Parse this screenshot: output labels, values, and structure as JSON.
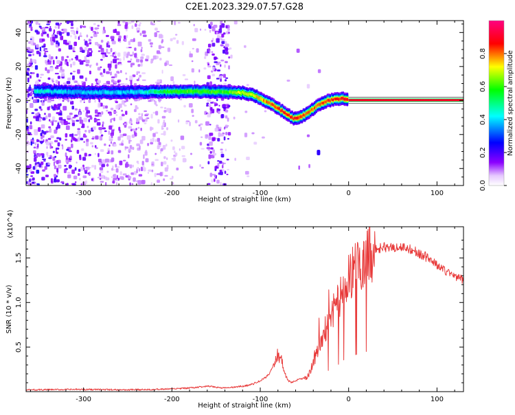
{
  "title": "C2E1.2023.329.07.57.G28",
  "chart_data": [
    {
      "type": "heatmap",
      "xlabel": "Height of straight line (km)",
      "ylabel": "Frequency (Hz)",
      "xlim": [
        -365,
        130
      ],
      "ylim": [
        -50,
        47
      ],
      "xticks": [
        -300,
        -200,
        -100,
        0,
        100
      ],
      "yticks": [
        -40,
        -20,
        0,
        20,
        40
      ],
      "xtick_labels": [
        "-300",
        "-200",
        "-100",
        "0",
        "100"
      ],
      "ytick_labels": [
        "-40",
        "-20",
        "0",
        "20",
        "40"
      ],
      "colorbar": {
        "label": "Normalized spectral amplitude",
        "range": [
          0,
          1
        ],
        "ticks": [
          0.0,
          0.2,
          0.4,
          0.6,
          0.8
        ],
        "tick_labels": [
          "0.0",
          "0.2",
          "0.4",
          "0.6",
          "0.8"
        ]
      },
      "ridge": {
        "x": [
          -355,
          -320,
          -280,
          -240,
          -200,
          -170,
          -140,
          -120,
          -110,
          -100,
          -90,
          -80,
          -70,
          -62,
          -55,
          -45,
          -35,
          -25,
          -15,
          -5,
          0,
          50,
          130
        ],
        "y": [
          5.5,
          5,
          4.8,
          5,
          5.2,
          5.3,
          5,
          4.5,
          3.5,
          1.5,
          -1.5,
          -4.5,
          -8,
          -10.5,
          -10,
          -7,
          -3,
          -0.5,
          1,
          1,
          0.5,
          0.2,
          0.2
        ],
        "amplitude": [
          0.45,
          0.4,
          0.4,
          0.4,
          0.6,
          0.6,
          0.6,
          0.7,
          0.7,
          0.75,
          0.8,
          0.85,
          0.85,
          0.85,
          0.85,
          0.8,
          0.8,
          0.85,
          0.85,
          0.85,
          0.9,
          0.9,
          0.9
        ]
      }
    },
    {
      "type": "line",
      "xlabel": "Height of straight line (km)",
      "ylabel": "SNR (10 * v/v)",
      "y_multiplier": "(x10^4)",
      "xlim": [
        -365,
        130
      ],
      "ylim": [
        0,
        1.85
      ],
      "xticks": [
        -300,
        -200,
        -100,
        0,
        100
      ],
      "yticks": [
        0.5,
        1.0,
        1.5
      ],
      "xtick_labels": [
        "-300",
        "-200",
        "-100",
        "0",
        "100"
      ],
      "ytick_labels": [
        "0.5",
        "1.0",
        "1.5"
      ],
      "color": "#e83b3b",
      "series": [
        {
          "x": [
            -365,
            -300,
            -250,
            -200,
            -180,
            -160,
            -140,
            -120,
            -110,
            -100,
            -95,
            -90,
            -85,
            -80,
            -76,
            -72,
            -68,
            -64,
            -60,
            -55,
            -50,
            -45,
            -40,
            -35,
            -30,
            -25,
            -20,
            -15,
            -10,
            -5,
            0,
            5,
            10,
            15,
            20,
            25,
            30,
            40,
            60,
            70,
            80,
            90,
            100,
            110,
            120,
            130
          ],
          "y": [
            0.02,
            0.025,
            0.02,
            0.03,
            0.04,
            0.06,
            0.04,
            0.06,
            0.08,
            0.12,
            0.15,
            0.2,
            0.3,
            0.42,
            0.35,
            0.2,
            0.12,
            0.1,
            0.12,
            0.15,
            0.15,
            0.18,
            0.35,
            0.45,
            0.6,
            0.75,
            0.85,
            0.95,
            1.05,
            1.2,
            1.3,
            1.35,
            1.4,
            1.45,
            1.5,
            1.55,
            1.6,
            1.62,
            1.62,
            1.6,
            1.55,
            1.5,
            1.42,
            1.35,
            1.3,
            1.25
          ]
        }
      ]
    }
  ]
}
